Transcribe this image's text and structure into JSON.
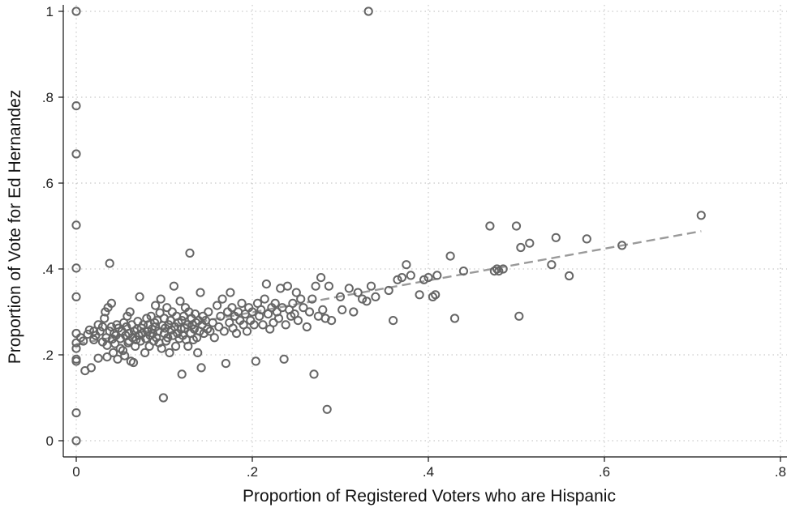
{
  "chart_data": {
    "type": "scatter",
    "xlabel": "Proportion of Registered Voters who are Hispanic",
    "ylabel": "Proportion of Vote for Ed Hernandez",
    "xlim": [
      0,
      0.8
    ],
    "ylim": [
      0,
      1
    ],
    "xticks": [
      0,
      0.2,
      0.4,
      0.6,
      0.8
    ],
    "xtick_labels": [
      "0",
      ".2",
      ".4",
      ".6",
      ".8"
    ],
    "yticks": [
      0,
      0.2,
      0.4,
      0.6,
      0.8,
      1
    ],
    "ytick_labels": [
      "0",
      ".2",
      ".4",
      ".6",
      ".8",
      "1"
    ],
    "grid": true,
    "colors": {
      "points": "#666666",
      "fit_line": "#9a9a9a",
      "grid": "#bdbdbd"
    },
    "fit_line": {
      "style": "dashed",
      "x": [
        0,
        0.71
      ],
      "y": [
        0.225,
        0.488
      ]
    },
    "points": [
      [
        0,
        1.0
      ],
      [
        0,
        0.78
      ],
      [
        0,
        0.668
      ],
      [
        0,
        0.502
      ],
      [
        0,
        0.402
      ],
      [
        0,
        0.335
      ],
      [
        0,
        0.25
      ],
      [
        0,
        0.228
      ],
      [
        0,
        0.215
      ],
      [
        0,
        0.19
      ],
      [
        0,
        0.185
      ],
      [
        0,
        0.065
      ],
      [
        0,
        0.0
      ],
      [
        0.332,
        1.0
      ],
      [
        0.005,
        0.24
      ],
      [
        0.008,
        0.232
      ],
      [
        0.01,
        0.163
      ],
      [
        0.013,
        0.248
      ],
      [
        0.015,
        0.258
      ],
      [
        0.017,
        0.17
      ],
      [
        0.02,
        0.255
      ],
      [
        0.02,
        0.235
      ],
      [
        0.022,
        0.245
      ],
      [
        0.025,
        0.192
      ],
      [
        0.025,
        0.27
      ],
      [
        0.027,
        0.255
      ],
      [
        0.03,
        0.23
      ],
      [
        0.03,
        0.265
      ],
      [
        0.032,
        0.285
      ],
      [
        0.033,
        0.3
      ],
      [
        0.034,
        0.24
      ],
      [
        0.035,
        0.222
      ],
      [
        0.035,
        0.195
      ],
      [
        0.036,
        0.31
      ],
      [
        0.038,
        0.255
      ],
      [
        0.038,
        0.413
      ],
      [
        0.04,
        0.32
      ],
      [
        0.04,
        0.265
      ],
      [
        0.041,
        0.237
      ],
      [
        0.042,
        0.205
      ],
      [
        0.043,
        0.25
      ],
      [
        0.044,
        0.226
      ],
      [
        0.045,
        0.245
      ],
      [
        0.046,
        0.27
      ],
      [
        0.047,
        0.19
      ],
      [
        0.048,
        0.262
      ],
      [
        0.05,
        0.238
      ],
      [
        0.05,
        0.215
      ],
      [
        0.052,
        0.255
      ],
      [
        0.053,
        0.21
      ],
      [
        0.054,
        0.275
      ],
      [
        0.055,
        0.198
      ],
      [
        0.056,
        0.245
      ],
      [
        0.057,
        0.265
      ],
      [
        0.058,
        0.29
      ],
      [
        0.059,
        0.228
      ],
      [
        0.06,
        0.25
      ],
      [
        0.06,
        0.232
      ],
      [
        0.061,
        0.3
      ],
      [
        0.062,
        0.185
      ],
      [
        0.063,
        0.27
      ],
      [
        0.064,
        0.24
      ],
      [
        0.065,
        0.182
      ],
      [
        0.066,
        0.255
      ],
      [
        0.067,
        0.22
      ],
      [
        0.068,
        0.235
      ],
      [
        0.069,
        0.26
      ],
      [
        0.07,
        0.278
      ],
      [
        0.071,
        0.245
      ],
      [
        0.072,
        0.335
      ],
      [
        0.073,
        0.232
      ],
      [
        0.074,
        0.262
      ],
      [
        0.075,
        0.25
      ],
      [
        0.076,
        0.27
      ],
      [
        0.078,
        0.205
      ],
      [
        0.079,
        0.238
      ],
      [
        0.08,
        0.285
      ],
      [
        0.081,
        0.255
      ],
      [
        0.082,
        0.27
      ],
      [
        0.083,
        0.22
      ],
      [
        0.084,
        0.245
      ],
      [
        0.085,
        0.29
      ],
      [
        0.086,
        0.26
      ],
      [
        0.087,
        0.25
      ],
      [
        0.088,
        0.232
      ],
      [
        0.089,
        0.275
      ],
      [
        0.09,
        0.315
      ],
      [
        0.09,
        0.265
      ],
      [
        0.091,
        0.24
      ],
      [
        0.092,
        0.28
      ],
      [
        0.093,
        0.255
      ],
      [
        0.094,
        0.228
      ],
      [
        0.095,
        0.298
      ],
      [
        0.096,
        0.33
      ],
      [
        0.097,
        0.215
      ],
      [
        0.098,
        0.268
      ],
      [
        0.099,
        0.1
      ],
      [
        0.1,
        0.25
      ],
      [
        0.1,
        0.285
      ],
      [
        0.101,
        0.262
      ],
      [
        0.102,
        0.232
      ],
      [
        0.103,
        0.31
      ],
      [
        0.104,
        0.24
      ],
      [
        0.105,
        0.27
      ],
      [
        0.106,
        0.205
      ],
      [
        0.107,
        0.28
      ],
      [
        0.108,
        0.258
      ],
      [
        0.109,
        0.3
      ],
      [
        0.11,
        0.245
      ],
      [
        0.111,
        0.36
      ],
      [
        0.112,
        0.265
      ],
      [
        0.113,
        0.22
      ],
      [
        0.114,
        0.29
      ],
      [
        0.115,
        0.25
      ],
      [
        0.116,
        0.275
      ],
      [
        0.117,
        0.238
      ],
      [
        0.118,
        0.325
      ],
      [
        0.119,
        0.26
      ],
      [
        0.12,
        0.155
      ],
      [
        0.12,
        0.28
      ],
      [
        0.121,
        0.245
      ],
      [
        0.122,
        0.29
      ],
      [
        0.123,
        0.262
      ],
      [
        0.124,
        0.31
      ],
      [
        0.125,
        0.235
      ],
      [
        0.126,
        0.27
      ],
      [
        0.127,
        0.22
      ],
      [
        0.128,
        0.3
      ],
      [
        0.129,
        0.437
      ],
      [
        0.13,
        0.25
      ],
      [
        0.131,
        0.285
      ],
      [
        0.132,
        0.27
      ],
      [
        0.133,
        0.235
      ],
      [
        0.134,
        0.26
      ],
      [
        0.135,
        0.295
      ],
      [
        0.136,
        0.275
      ],
      [
        0.137,
        0.24
      ],
      [
        0.138,
        0.205
      ],
      [
        0.139,
        0.28
      ],
      [
        0.14,
        0.255
      ],
      [
        0.141,
        0.345
      ],
      [
        0.142,
        0.17
      ],
      [
        0.143,
        0.27
      ],
      [
        0.144,
        0.29
      ],
      [
        0.145,
        0.25
      ],
      [
        0.147,
        0.28
      ],
      [
        0.149,
        0.26
      ],
      [
        0.15,
        0.3
      ],
      [
        0.152,
        0.255
      ],
      [
        0.155,
        0.275
      ],
      [
        0.157,
        0.24
      ],
      [
        0.16,
        0.315
      ],
      [
        0.162,
        0.265
      ],
      [
        0.164,
        0.29
      ],
      [
        0.166,
        0.33
      ],
      [
        0.168,
        0.255
      ],
      [
        0.17,
        0.18
      ],
      [
        0.172,
        0.3
      ],
      [
        0.174,
        0.275
      ],
      [
        0.175,
        0.345
      ],
      [
        0.177,
        0.31
      ],
      [
        0.178,
        0.262
      ],
      [
        0.18,
        0.29
      ],
      [
        0.182,
        0.25
      ],
      [
        0.184,
        0.3
      ],
      [
        0.186,
        0.28
      ],
      [
        0.188,
        0.32
      ],
      [
        0.19,
        0.27
      ],
      [
        0.192,
        0.295
      ],
      [
        0.194,
        0.255
      ],
      [
        0.196,
        0.31
      ],
      [
        0.198,
        0.28
      ],
      [
        0.2,
        0.3
      ],
      [
        0.202,
        0.27
      ],
      [
        0.204,
        0.185
      ],
      [
        0.206,
        0.32
      ],
      [
        0.208,
        0.29
      ],
      [
        0.21,
        0.305
      ],
      [
        0.212,
        0.27
      ],
      [
        0.214,
        0.33
      ],
      [
        0.216,
        0.365
      ],
      [
        0.218,
        0.295
      ],
      [
        0.22,
        0.26
      ],
      [
        0.222,
        0.31
      ],
      [
        0.224,
        0.275
      ],
      [
        0.226,
        0.32
      ],
      [
        0.228,
        0.3
      ],
      [
        0.23,
        0.285
      ],
      [
        0.232,
        0.355
      ],
      [
        0.234,
        0.31
      ],
      [
        0.236,
        0.19
      ],
      [
        0.238,
        0.27
      ],
      [
        0.24,
        0.36
      ],
      [
        0.242,
        0.305
      ],
      [
        0.244,
        0.29
      ],
      [
        0.246,
        0.32
      ],
      [
        0.248,
        0.295
      ],
      [
        0.25,
        0.345
      ],
      [
        0.252,
        0.28
      ],
      [
        0.255,
        0.33
      ],
      [
        0.258,
        0.31
      ],
      [
        0.262,
        0.265
      ],
      [
        0.265,
        0.3
      ],
      [
        0.268,
        0.33
      ],
      [
        0.27,
        0.155
      ],
      [
        0.272,
        0.36
      ],
      [
        0.275,
        0.29
      ],
      [
        0.278,
        0.38
      ],
      [
        0.28,
        0.305
      ],
      [
        0.283,
        0.285
      ],
      [
        0.285,
        0.073
      ],
      [
        0.287,
        0.36
      ],
      [
        0.29,
        0.28
      ],
      [
        0.3,
        0.335
      ],
      [
        0.302,
        0.305
      ],
      [
        0.31,
        0.355
      ],
      [
        0.315,
        0.3
      ],
      [
        0.32,
        0.345
      ],
      [
        0.325,
        0.33
      ],
      [
        0.33,
        0.325
      ],
      [
        0.335,
        0.36
      ],
      [
        0.34,
        0.335
      ],
      [
        0.355,
        0.35
      ],
      [
        0.36,
        0.28
      ],
      [
        0.365,
        0.375
      ],
      [
        0.37,
        0.38
      ],
      [
        0.375,
        0.41
      ],
      [
        0.38,
        0.385
      ],
      [
        0.39,
        0.34
      ],
      [
        0.395,
        0.375
      ],
      [
        0.4,
        0.38
      ],
      [
        0.405,
        0.335
      ],
      [
        0.408,
        0.34
      ],
      [
        0.41,
        0.385
      ],
      [
        0.425,
        0.43
      ],
      [
        0.43,
        0.285
      ],
      [
        0.44,
        0.395
      ],
      [
        0.47,
        0.5
      ],
      [
        0.475,
        0.395
      ],
      [
        0.478,
        0.4
      ],
      [
        0.48,
        0.395
      ],
      [
        0.485,
        0.4
      ],
      [
        0.5,
        0.5
      ],
      [
        0.503,
        0.29
      ],
      [
        0.505,
        0.45
      ],
      [
        0.515,
        0.46
      ],
      [
        0.54,
        0.41
      ],
      [
        0.545,
        0.473
      ],
      [
        0.56,
        0.384
      ],
      [
        0.58,
        0.47
      ],
      [
        0.62,
        0.455
      ],
      [
        0.71,
        0.525
      ]
    ]
  }
}
